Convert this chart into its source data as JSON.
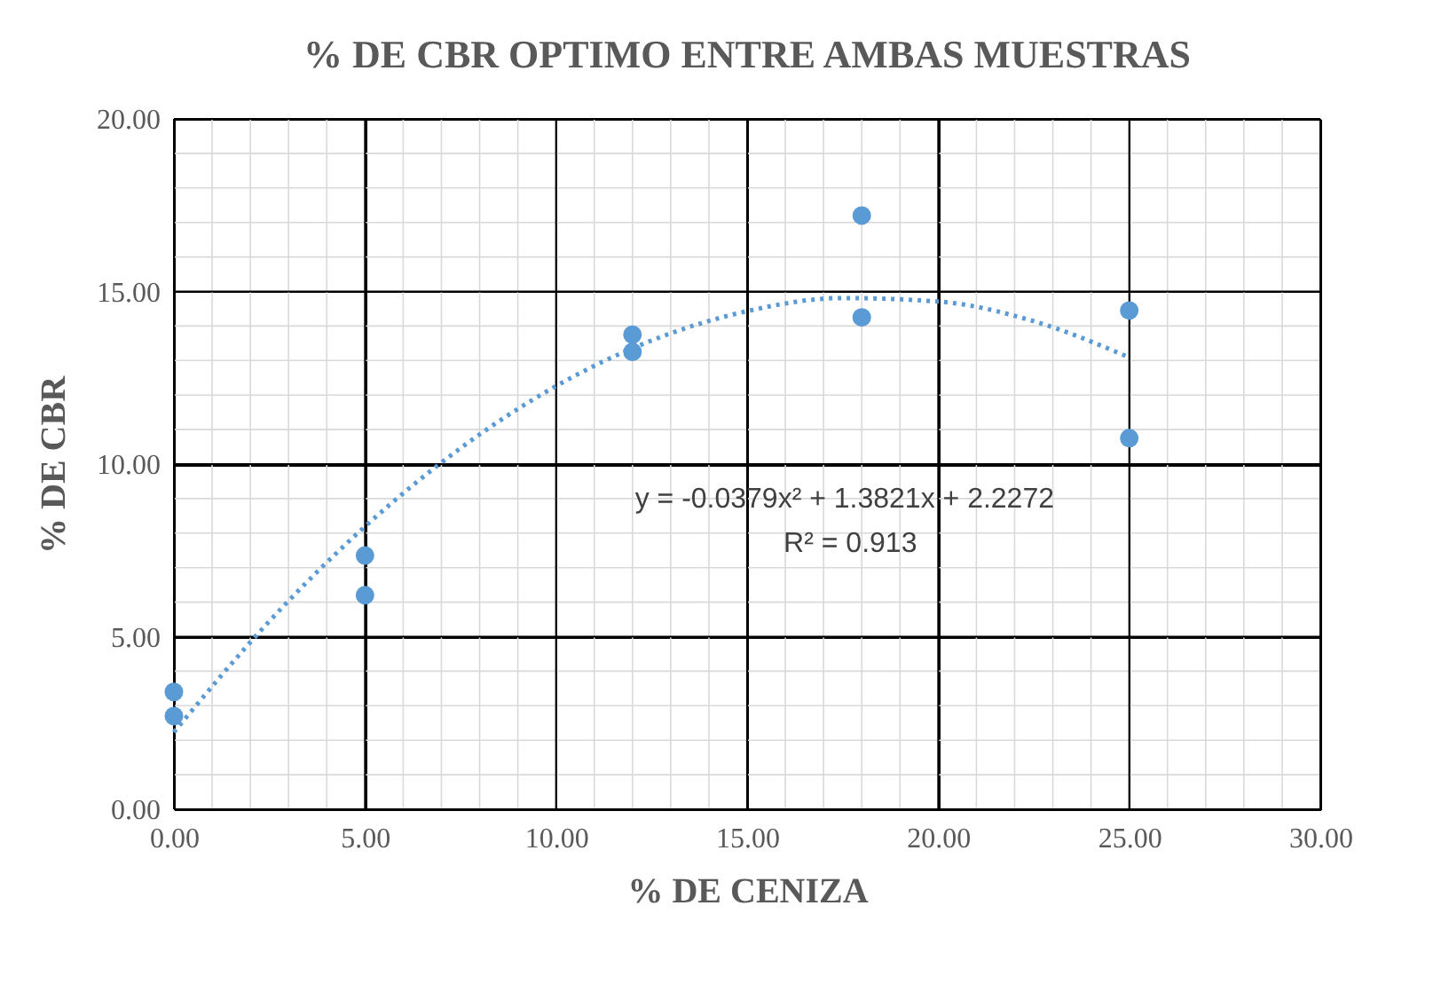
{
  "chart_data": {
    "type": "scatter",
    "title": "% DE CBR OPTIMO ENTRE AMBAS MUESTRAS",
    "xlabel": "% DE CENIZA",
    "ylabel": "% DE CBR",
    "xlim": [
      0,
      30
    ],
    "xticks": [
      {
        "value": 0,
        "label": "0.00"
      },
      {
        "value": 5,
        "label": "5.00"
      },
      {
        "value": 10,
        "label": "10.00"
      },
      {
        "value": 15,
        "label": "15.00"
      },
      {
        "value": 20,
        "label": "20.00"
      },
      {
        "value": 25,
        "label": "25.00"
      },
      {
        "value": 30,
        "label": "30.00"
      }
    ],
    "ylim": [
      0,
      20
    ],
    "yticks": [
      {
        "value": 0,
        "label": "0.00"
      },
      {
        "value": 5,
        "label": "5.00"
      },
      {
        "value": 10,
        "label": "10.00"
      },
      {
        "value": 15,
        "label": "15.00"
      },
      {
        "value": 20,
        "label": "20.00"
      }
    ],
    "grid": true,
    "series": [
      {
        "type": "scatter",
        "color": "#5b9bd5",
        "marker": "circle",
        "x": [
          0,
          0,
          5,
          5,
          12,
          12,
          18,
          18,
          25,
          25
        ],
        "values": [
          3.4,
          2.7,
          7.35,
          6.2,
          13.75,
          13.25,
          17.2,
          14.25,
          14.45,
          10.75
        ]
      },
      {
        "type": "line",
        "color": "#5b9bd5",
        "marker": "none",
        "line_style": "dotted",
        "x": [
          0,
          2.5,
          5,
          7.5,
          10,
          12.5,
          15,
          17.5,
          20,
          22.5,
          25
        ],
        "values": [
          2.23,
          5.45,
          8.19,
          10.46,
          12.26,
          13.58,
          14.43,
          14.81,
          14.71,
          14.14,
          13.09
        ]
      }
    ],
    "annotations": [
      "y = -0.0379x² + 1.3821x + 2.2272",
      "R² = 0.913"
    ]
  }
}
